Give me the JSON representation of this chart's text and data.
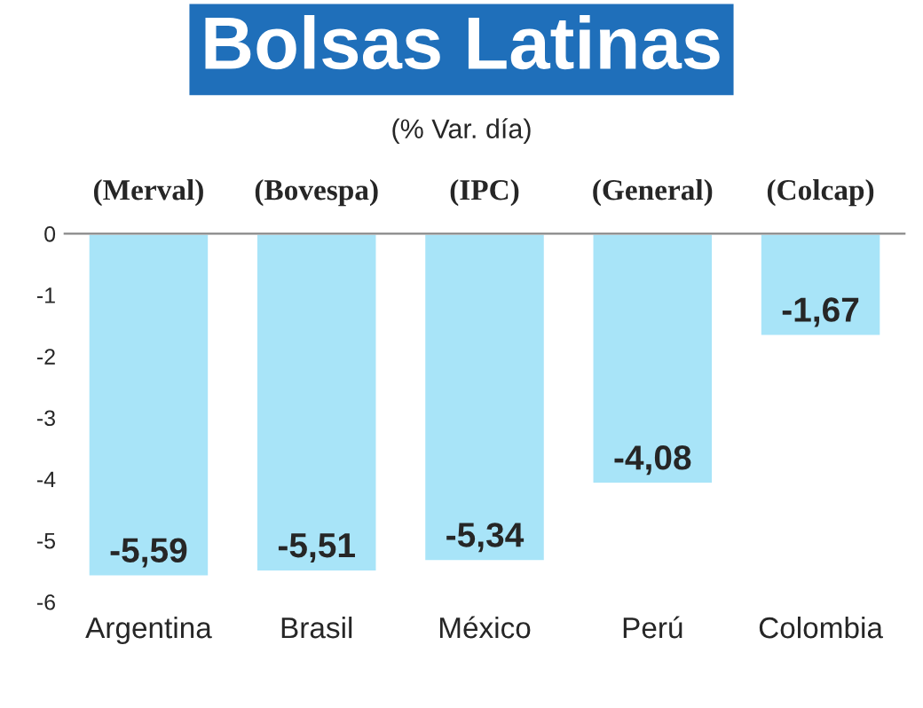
{
  "chart_data": {
    "type": "bar",
    "title": "Bolsas Latinas",
    "subtitle": "(% Var. día)",
    "categories": [
      "Argentina",
      "Brasil",
      "México",
      "Perú",
      "Colombia"
    ],
    "values": [
      -5.59,
      -5.51,
      -5.34,
      -4.08,
      -1.67
    ],
    "value_labels": [
      "-5,59",
      "-5,51",
      "-5,34",
      "-4,08",
      "-1,67"
    ],
    "color": "#a8e4f8",
    "annotations": [
      "(Merval)",
      "(Bovespa)",
      "(IPC)",
      "(General)",
      "(Colcap)"
    ],
    "ylim": [
      -6,
      0
    ],
    "yticks": [
      0,
      -1,
      -2,
      -3,
      -4,
      -5,
      -6
    ],
    "grid": false
  }
}
